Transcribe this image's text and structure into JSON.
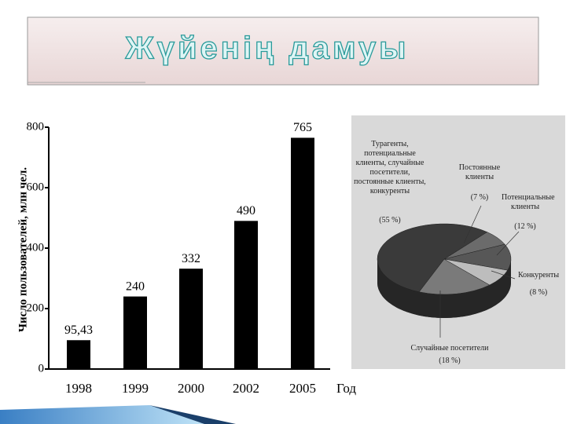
{
  "slide_title": "Жүйенің дамуы",
  "chart_data": [
    {
      "type": "bar",
      "ylabel": "Число пользователей, млн чел.",
      "xlabel": "Год",
      "categories": [
        "1998",
        "1999",
        "2000",
        "2002",
        "2005"
      ],
      "values": [
        95.43,
        240,
        332,
        490,
        765
      ],
      "value_labels": [
        "95,43",
        "240",
        "332",
        "490",
        "765"
      ],
      "color": "#000000",
      "ylim": [
        0,
        800
      ],
      "yticks": [
        0,
        200,
        400,
        600,
        800
      ]
    },
    {
      "type": "pie",
      "categories": [
        "Постоянные клиенты",
        "Потенциальные клиенты",
        "Конкуренты",
        "Случайные посетители",
        "Турагенты, потенциальные клиенты, случайные посетители, постоянные клиенты, конкуренты"
      ],
      "values": [
        7,
        12,
        8,
        18,
        55
      ],
      "value_labels": [
        "(7 %)",
        "(12 %)",
        "(8 %)",
        "(18 %)",
        "(55 %)"
      ],
      "colors": [
        "#6b6b6b",
        "#575757",
        "#bdbdbd",
        "#7a7a7a",
        "#3a3a3a"
      ]
    }
  ]
}
